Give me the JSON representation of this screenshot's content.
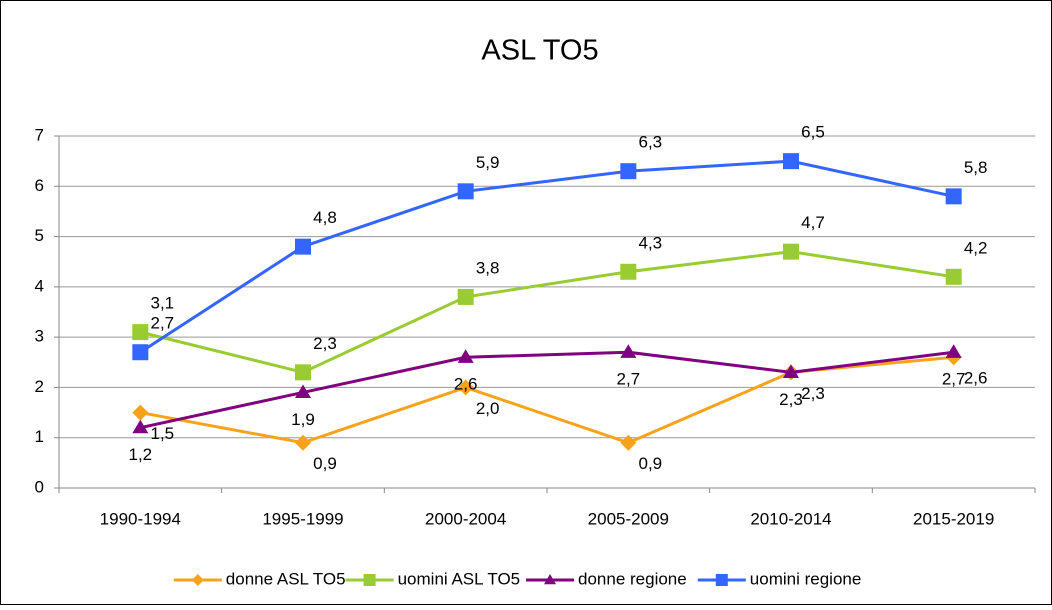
{
  "chart_data": {
    "type": "line",
    "title": "ASL TO5",
    "categories": [
      "1990-1994",
      "1995-1999",
      "2000-2004",
      "2005-2009",
      "2010-2014",
      "2015-2019"
    ],
    "ylim": [
      0,
      7
    ],
    "yticks": [
      0,
      1,
      2,
      3,
      4,
      5,
      6,
      7
    ],
    "grid": true,
    "legend": "bottom",
    "series": [
      {
        "name": "donne ASL TO5",
        "color": "#f7a21b",
        "marker": "diamond",
        "values": [
          1.5,
          0.9,
          2.0,
          0.9,
          2.3,
          2.6
        ],
        "value_labels": [
          "1,5",
          "0,9",
          "2,0",
          "0,9",
          "2,3",
          "2,6"
        ]
      },
      {
        "name": "uomini ASL TO5",
        "color": "#99cc33",
        "marker": "square",
        "values": [
          3.1,
          2.3,
          3.8,
          4.3,
          4.7,
          4.2
        ],
        "value_labels": [
          "3,1",
          "2,3",
          "3,8",
          "4,3",
          "4,7",
          "4,2"
        ]
      },
      {
        "name": "donne regione",
        "color": "#800080",
        "marker": "triangle",
        "values": [
          1.2,
          1.9,
          2.6,
          2.7,
          2.3,
          2.7
        ],
        "value_labels": [
          "1,2",
          "1,9",
          "2,6",
          "2,7",
          "2,3",
          "2,7"
        ]
      },
      {
        "name": "uomini regione",
        "color": "#3366ff",
        "marker": "square",
        "values": [
          2.7,
          4.8,
          5.9,
          6.3,
          6.5,
          5.8
        ],
        "value_labels": [
          "2,7",
          "4,8",
          "5,9",
          "6,3",
          "6,5",
          "5,8"
        ]
      }
    ]
  }
}
